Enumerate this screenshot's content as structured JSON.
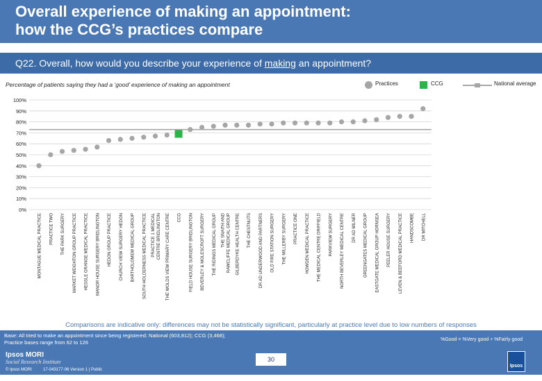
{
  "header": {
    "title_line1": "Overall experience of making an appointment:",
    "title_line2": "how the CCG’s practices compare"
  },
  "question": {
    "prefix": "Q22. Overall, how would you describe your experience of ",
    "underlined": "making",
    "suffix": " an appointment?"
  },
  "subtitle": "Percentage of patients saying they had a ‘good’ experience of making an appointment",
  "legend": {
    "practices": "Practices",
    "ccg": "CCG",
    "national": "National average"
  },
  "colors": {
    "header_bg": "#4a78b5",
    "practice_marker": "#a6a6a6",
    "ccg_marker": "#2db34a",
    "national_line": "#a6a6a6",
    "grid": "#d4d4d4"
  },
  "chart_data": {
    "type": "scatter",
    "title": "Q22. Overall, how would you describe your experience of making an appointment?",
    "ylabel": "Percentage of patients saying they had a ‘good’ experience of making an appointment",
    "ylim": [
      0,
      100
    ],
    "yticks": [
      "100%",
      "90%",
      "80%",
      "70%",
      "60%",
      "50%",
      "40%",
      "30%",
      "20%",
      "10%",
      "0%"
    ],
    "national_average": 73,
    "categories": [
      "MONTAGUE MEDICAL PRACTICE",
      "PRACTICE TWO",
      "THE PARK SURGERY",
      "MARKET WEIGHTON GROUP PRACTICE",
      "HESSLE GRANGE MEDICAL PRACTICE",
      "MANOR HOUSE SURGERY BRIDLINGTON",
      "HEDON GROUP PRACTICE",
      "CHURCH VIEW SURGERY HEDON",
      "BARTHOLOMEW MEDICAL GROUP",
      "SOUTH HOLDERNESS MEDICAL PRACTICE",
      "PRACTICE 1 MEDICAL CENTRE BRIDLINGTON",
      "THE WOLDS VIEW PRIMARY CARE CENTRE",
      "CCG",
      "FIELD HOUSE SURGERY BRIDLINGTON",
      "BEVERLEY & MOLESCROFT SURGERY",
      "THE RIDINGS MEDICAL GROUP",
      "THE SNAITH AND RAWCLIFFE MEDICAL GROUP",
      "GILBERDYKE HEALTH CENTRE",
      "THE CHESTNUTS",
      "DR AD UNDERWOOD AND PARTNERS",
      "OLD FIRE STATION SURGERY",
      "THE MILLERBY SURGERY",
      "PRACTICE ONE",
      "HOWDEN MEDICAL PRACTICE",
      "THE MEDICAL CENTRE DRIFFIELD",
      "PARKVIEW SURGERY",
      "NORTH BEVERLEY MEDICAL CENTRE",
      "DR AD MILNER",
      "GREENGATES MEDICAL GROUP",
      "EASTGATE MEDICAL GROUP HORNSEA",
      "PEELER HOUSE SURGERY",
      "LEVEN & BEEFORD MEDICAL PRACTICE",
      "HANDSCOMBE",
      "DR MITCHELL"
    ],
    "values": [
      40,
      50,
      53,
      54,
      55,
      57,
      63,
      64,
      65,
      66,
      67,
      68,
      69,
      73,
      75,
      76,
      77,
      77,
      77,
      78,
      78,
      79,
      79,
      79,
      79,
      79,
      80,
      80,
      81,
      82,
      84,
      85,
      85,
      92
    ],
    "ccg_index": 12
  },
  "disclaimer": "Comparisons are indicative only: differences may not be statistically significant, particularly at practice level due to low numbers of responses",
  "footer": {
    "base_line1": "Base: All tried to make an appointment since being registered: National (603,812); CCG (3,468);",
    "base_line2": "Practice bases range from 62 to 126",
    "definition": "%Good = %Very good + %Fairly good",
    "page_number": "30",
    "brand_name": "Ipsos MORI",
    "brand_sub": "Social Research Institute",
    "copyright": "© Ipsos MORI",
    "version": "17-043177-06 Version 1 | Public",
    "logo_text": "Ipsos"
  }
}
